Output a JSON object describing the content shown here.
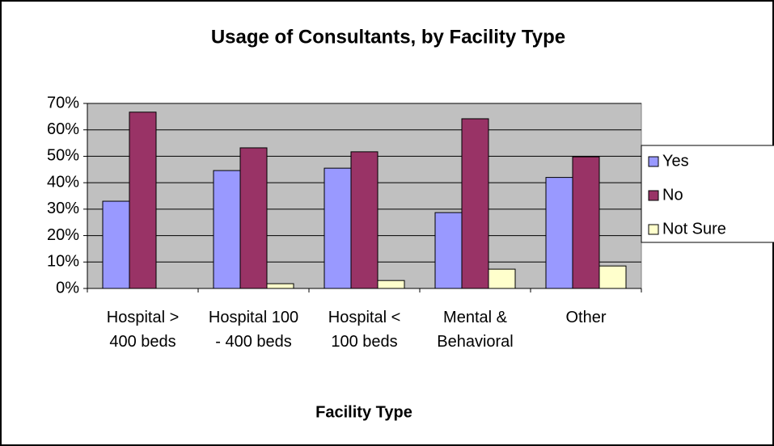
{
  "chart_data": {
    "type": "bar",
    "title": "Usage of Consultants, by Facility Type",
    "x_label": "Facility Type",
    "categories": [
      "Hospital > 400 beds",
      "Hospital 100 - 400 beds",
      "Hospital < 100 beds",
      "Mental & Behavioral",
      "Other"
    ],
    "series": [
      {
        "name": "Yes",
        "color": "#9999ff",
        "values": [
          33,
          44.6,
          45.5,
          28.7,
          42
        ]
      },
      {
        "name": "No",
        "color": "#993366",
        "values": [
          66.7,
          53.2,
          51.7,
          64.2,
          49.8
        ]
      },
      {
        "name": "Not Sure",
        "color": "#ffffcc",
        "values": [
          0,
          1.8,
          3,
          7.3,
          8.5
        ]
      }
    ],
    "ylim": [
      0,
      70
    ],
    "yticks": [
      {
        "value": 0,
        "label": "0%"
      },
      {
        "value": 10,
        "label": "10%"
      },
      {
        "value": 20,
        "label": "20%"
      },
      {
        "value": 30,
        "label": "30%"
      },
      {
        "value": 40,
        "label": "40%"
      },
      {
        "value": 50,
        "label": "50%"
      },
      {
        "value": 60,
        "label": "60%"
      },
      {
        "value": 70,
        "label": "70%"
      }
    ],
    "grid": true,
    "legend": "right"
  }
}
